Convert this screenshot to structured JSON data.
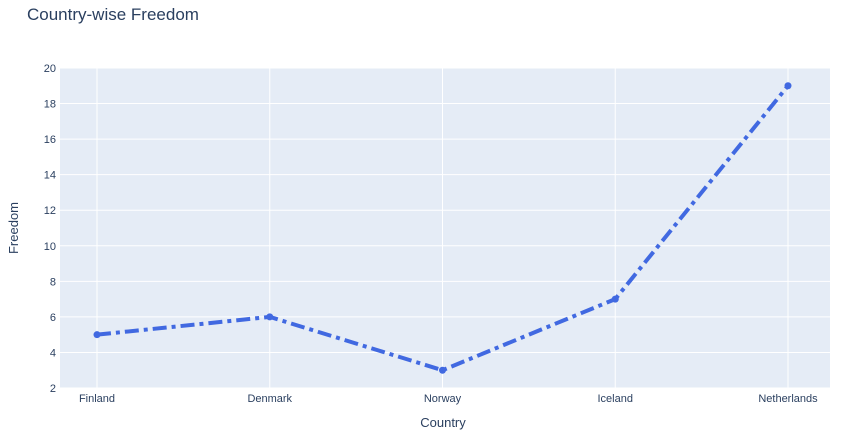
{
  "chart_data": {
    "type": "line",
    "title": "Country-wise Freedom",
    "xlabel": "Country",
    "ylabel": "Freedom",
    "categories": [
      "Finland",
      "Denmark",
      "Norway",
      "Iceland",
      "Netherlands"
    ],
    "series": [
      {
        "values": [
          5,
          6,
          3,
          7,
          19
        ],
        "color": "#4169e1",
        "line_style": "dashdot",
        "markers": true
      }
    ],
    "ylim": [
      2,
      20
    ],
    "yticks": [
      2,
      4,
      6,
      8,
      10,
      12,
      14,
      16,
      18,
      20
    ],
    "grid": true,
    "plot_background": "#e5ecf6",
    "gridline_color": "#ffffff"
  }
}
